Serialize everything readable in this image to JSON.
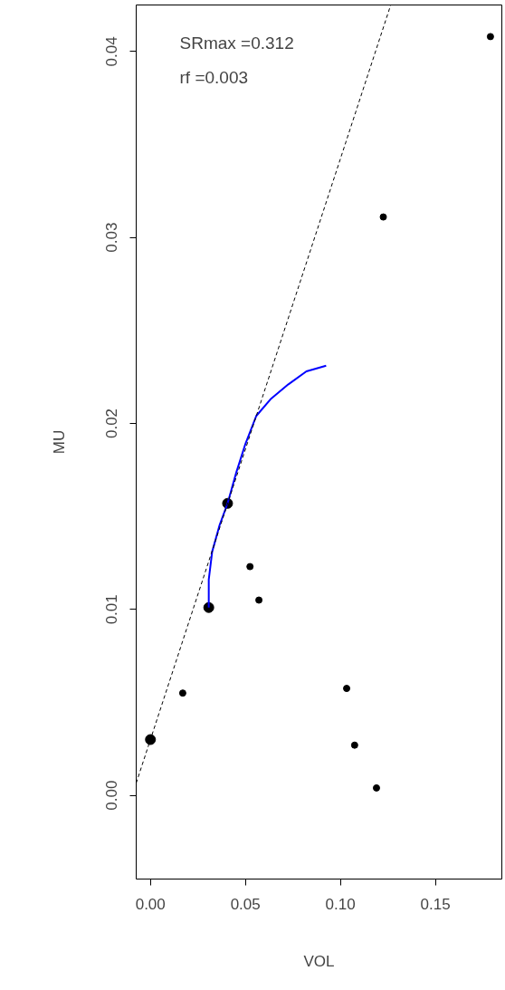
{
  "chart_data": {
    "type": "scatter",
    "xlabel": "VOL",
    "ylabel": "MU",
    "xlim": [
      -0.0075,
      0.185
    ],
    "ylim": [
      -0.0045,
      0.0425
    ],
    "xticks": [
      {
        "value": 0,
        "label": "0.00"
      },
      {
        "value": 0.05,
        "label": "0.05"
      },
      {
        "value": 0.1,
        "label": "0.10"
      },
      {
        "value": 0.15,
        "label": "0.15"
      }
    ],
    "yticks": [
      {
        "value": 0,
        "label": "0.00"
      },
      {
        "value": 0.01,
        "label": "0.01"
      },
      {
        "value": 0.02,
        "label": "0.02"
      },
      {
        "value": 0.03,
        "label": "0.03"
      },
      {
        "value": 0.04,
        "label": "0.04"
      }
    ],
    "annotations": [
      "SRmax =0.312",
      "rf =0.003"
    ],
    "grid": false,
    "series": [
      {
        "marker": "circle",
        "color": "#000000",
        "x": [
          0.179,
          0.1226,
          0.0524,
          0.0571,
          0.017,
          0.1033,
          0.1075,
          0.119
        ],
        "values": [
          0.0408,
          0.0311,
          0.0123,
          0.0105,
          0.0055,
          0.00575,
          0.0027,
          0.0004
        ]
      },
      {
        "marker": "circle",
        "color": "#000000",
        "x": [
          0,
          0.0307,
          0.0406
        ],
        "values": [
          0.003,
          0.0101,
          0.0157
        ]
      },
      {
        "type": "line",
        "color": "#0000ff",
        "line_style": "solid",
        "x": [
          0.0307,
          0.0307,
          0.0325,
          0.0363,
          0.0406,
          0.0453,
          0.05,
          0.0557,
          0.0632,
          0.0726,
          0.0821,
          0.0925
        ],
        "values": [
          0.0101,
          0.0116,
          0.0131,
          0.0145,
          0.0157,
          0.0174,
          0.0189,
          0.0204,
          0.0213,
          0.0221,
          0.0228,
          0.0231
        ]
      },
      {
        "type": "line",
        "color": "#000000",
        "line_style": "dashed",
        "x": [
          -0.0075,
          0.1265
        ],
        "values": [
          0.00066,
          0.0425
        ]
      }
    ]
  }
}
